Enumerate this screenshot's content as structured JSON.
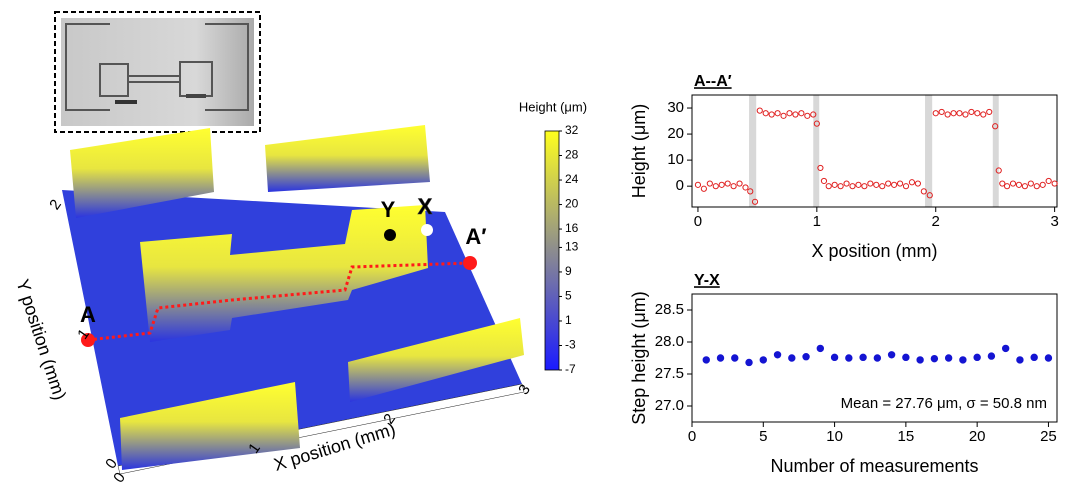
{
  "chart_data": [
    {
      "type": "surface3d",
      "xlabel": "X position (mm)",
      "ylabel": "Y position (mm)",
      "xticks": [
        0,
        1,
        2,
        3
      ],
      "yticks": [
        0,
        1,
        2
      ],
      "colorbar": {
        "label": "Height (μm)",
        "ticks": [
          32,
          28,
          24,
          20,
          16,
          13,
          9,
          5,
          1,
          -3,
          -7
        ],
        "colors": [
          "#ffff1e",
          "#1a1aff"
        ]
      },
      "annotations": [
        "A",
        "A′",
        "Y",
        "X"
      ]
    },
    {
      "type": "scatter",
      "title": "A--A′",
      "xlabel": "X position (mm)",
      "ylabel": "Height (μm)",
      "xlim": [
        -0.05,
        3.02
      ],
      "ylim": [
        -8,
        35
      ],
      "xticks": [
        0,
        1,
        2,
        3
      ],
      "yticks": [
        0,
        10,
        20,
        30
      ],
      "shaded_regions": [
        [
          0.43,
          0.49
        ],
        [
          0.97,
          1.02
        ],
        [
          1.91,
          1.97
        ],
        [
          2.48,
          2.53
        ]
      ],
      "marker": "open",
      "series": [
        {
          "color": "#e02020",
          "x": [
            0,
            0.05,
            0.1,
            0.15,
            0.2,
            0.25,
            0.3,
            0.35,
            0.4,
            0.44,
            0.48,
            0.52,
            0.57,
            0.62,
            0.67,
            0.72,
            0.77,
            0.82,
            0.87,
            0.92,
            0.97,
            1.0,
            1.03,
            1.06,
            1.1,
            1.15,
            1.2,
            1.25,
            1.3,
            1.35,
            1.4,
            1.45,
            1.5,
            1.55,
            1.6,
            1.65,
            1.7,
            1.75,
            1.8,
            1.85,
            1.9,
            1.95,
            2.0,
            2.05,
            2.1,
            2.15,
            2.2,
            2.25,
            2.3,
            2.35,
            2.4,
            2.45,
            2.5,
            2.53,
            2.56,
            2.6,
            2.65,
            2.7,
            2.75,
            2.8,
            2.85,
            2.9,
            2.95,
            3.0
          ],
          "values": [
            0.5,
            -1,
            1,
            0,
            0.5,
            1,
            0,
            1,
            -0.5,
            -2,
            -6,
            29,
            28,
            27.5,
            28,
            27,
            28,
            27.5,
            28,
            27,
            27.5,
            24,
            7,
            2,
            0,
            0.5,
            0,
            1,
            0,
            0.5,
            0,
            1,
            0.5,
            0,
            1,
            0.5,
            1,
            0,
            1.5,
            1,
            -2,
            -3.5,
            28,
            28.5,
            27.5,
            28,
            28,
            27.5,
            28.5,
            28,
            27.5,
            28.5,
            23,
            6,
            1,
            0,
            1,
            0.5,
            0,
            1,
            0,
            0.5,
            2,
            1
          ]
        }
      ]
    },
    {
      "type": "scatter",
      "title": "Y-X",
      "xlabel": "Number of measurements",
      "ylabel": "Step height (μm)",
      "xlim": [
        0,
        25.6
      ],
      "ylim": [
        26.75,
        28.75
      ],
      "xticks": [
        0,
        5,
        10,
        15,
        20,
        25
      ],
      "yticks": [
        {
          "value": 27,
          "label": "27.0"
        },
        27.5,
        {
          "value": 28,
          "label": "28.0"
        },
        28.5
      ],
      "annotation": "Mean = 27.76 μm, σ = 50.8 nm",
      "marker": "filled",
      "series": [
        {
          "color": "#1414d2",
          "x": [
            1,
            2,
            3,
            4,
            5,
            6,
            7,
            8,
            9,
            10,
            11,
            12,
            13,
            14,
            15,
            16,
            17,
            18,
            19,
            20,
            21,
            22,
            23,
            24,
            25
          ],
          "values": [
            27.72,
            27.75,
            27.75,
            27.68,
            27.72,
            27.8,
            27.75,
            27.77,
            27.9,
            27.76,
            27.75,
            27.76,
            27.75,
            27.8,
            27.76,
            27.72,
            27.74,
            27.75,
            27.72,
            27.76,
            27.78,
            27.9,
            27.72,
            27.76,
            27.75
          ]
        }
      ]
    }
  ]
}
